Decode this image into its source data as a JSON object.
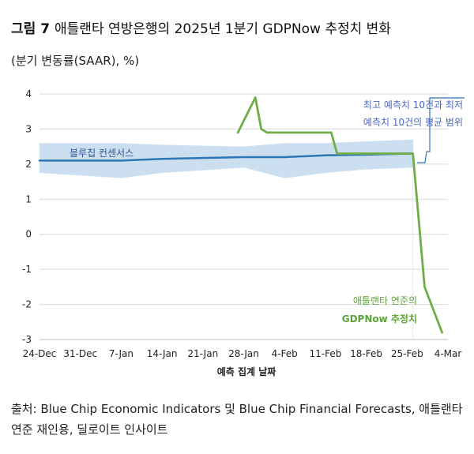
{
  "figure": {
    "label": "그림 7",
    "title": "애틀랜타 연방은행의 2025년 1분기 GDPNow 추정치 변화",
    "subtitle": "(분기 변동률(SAAR), %)",
    "source": "출처: Blue Chip Economic Indicators 및 Blue Chip Financial Forecasts, 애틀랜타 연준 재인용, 딜로이트 인사이트"
  },
  "chart_data": {
    "type": "line",
    "title": "애틀랜타 연방은행의 2025년 1분기 GDPNow 추정치 변화",
    "xlabel": "예측 집계 날짜",
    "ylabel": "(분기 변동률(SAAR), %)",
    "ylim": [
      -3,
      4
    ],
    "yticks": [
      4,
      3,
      2,
      1,
      0,
      -1,
      -2,
      -3
    ],
    "xlim_days_from_dec24": [
      0,
      70
    ],
    "xticks": [
      {
        "day": 0,
        "label": "24-Dec"
      },
      {
        "day": 7,
        "label": "31-Dec"
      },
      {
        "day": 14,
        "label": "7-Jan"
      },
      {
        "day": 21,
        "label": "14-Jan"
      },
      {
        "day": 28,
        "label": "21-Jan"
      },
      {
        "day": 35,
        "label": "28-Jan"
      },
      {
        "day": 42,
        "label": "4-Feb"
      },
      {
        "day": 49,
        "label": "11-Feb"
      },
      {
        "day": 56,
        "label": "18-Feb"
      },
      {
        "day": 63,
        "label": "25-Feb"
      },
      {
        "day": 70,
        "label": "4-Mar"
      }
    ],
    "series": [
      {
        "name": "블루칩 컨센서스",
        "color": "#2e75b6",
        "points": [
          {
            "day": 0,
            "value": 2.1
          },
          {
            "day": 14,
            "value": 2.1
          },
          {
            "day": 21,
            "value": 2.15
          },
          {
            "day": 35,
            "value": 2.2
          },
          {
            "day": 42,
            "value": 2.2
          },
          {
            "day": 49,
            "value": 2.25
          },
          {
            "day": 56,
            "value": 2.27
          },
          {
            "day": 63,
            "value": 2.3
          },
          {
            "day": 64,
            "value": 2.3
          }
        ]
      },
      {
        "name": "애틀랜타 연준의 GDPNow 추정치",
        "color": "#70ad47",
        "points": [
          {
            "day": 34,
            "value": 2.9
          },
          {
            "day": 37,
            "value": 3.9
          },
          {
            "day": 38,
            "value": 3.0
          },
          {
            "day": 39,
            "value": 2.9
          },
          {
            "day": 50,
            "value": 2.9
          },
          {
            "day": 51,
            "value": 2.3
          },
          {
            "day": 62,
            "value": 2.3
          },
          {
            "day": 63,
            "value": 2.3
          },
          {
            "day": 64,
            "value": 2.3
          },
          {
            "day": 66,
            "value": -1.5
          },
          {
            "day": 69,
            "value": -2.8
          }
        ]
      }
    ],
    "band": {
      "name": "최고 예측치 10건과 최저 예측치 10건의 평균 범위",
      "color": "#c5dcee",
      "upper": [
        {
          "day": 0,
          "value": 2.6
        },
        {
          "day": 14,
          "value": 2.6
        },
        {
          "day": 21,
          "value": 2.55
        },
        {
          "day": 35,
          "value": 2.5
        },
        {
          "day": 42,
          "value": 2.6
        },
        {
          "day": 49,
          "value": 2.6
        },
        {
          "day": 56,
          "value": 2.65
        },
        {
          "day": 64,
          "value": 2.7
        }
      ],
      "lower": [
        {
          "day": 0,
          "value": 1.75
        },
        {
          "day": 14,
          "value": 1.6
        },
        {
          "day": 21,
          "value": 1.75
        },
        {
          "day": 35,
          "value": 1.9
        },
        {
          "day": 42,
          "value": 1.6
        },
        {
          "day": 49,
          "value": 1.75
        },
        {
          "day": 56,
          "value": 1.85
        },
        {
          "day": 64,
          "value": 1.9
        }
      ]
    },
    "annotations": {
      "consensus_label": "블루칩 컨센서스",
      "band_label_line1": "최고 예측치 10건과 최저",
      "band_label_line2": "예측치 10건의 평균 범위",
      "gdpnow_label_line1": "애틀랜타 연준의",
      "gdpnow_label_line2": "GDPNow 추정치"
    }
  }
}
